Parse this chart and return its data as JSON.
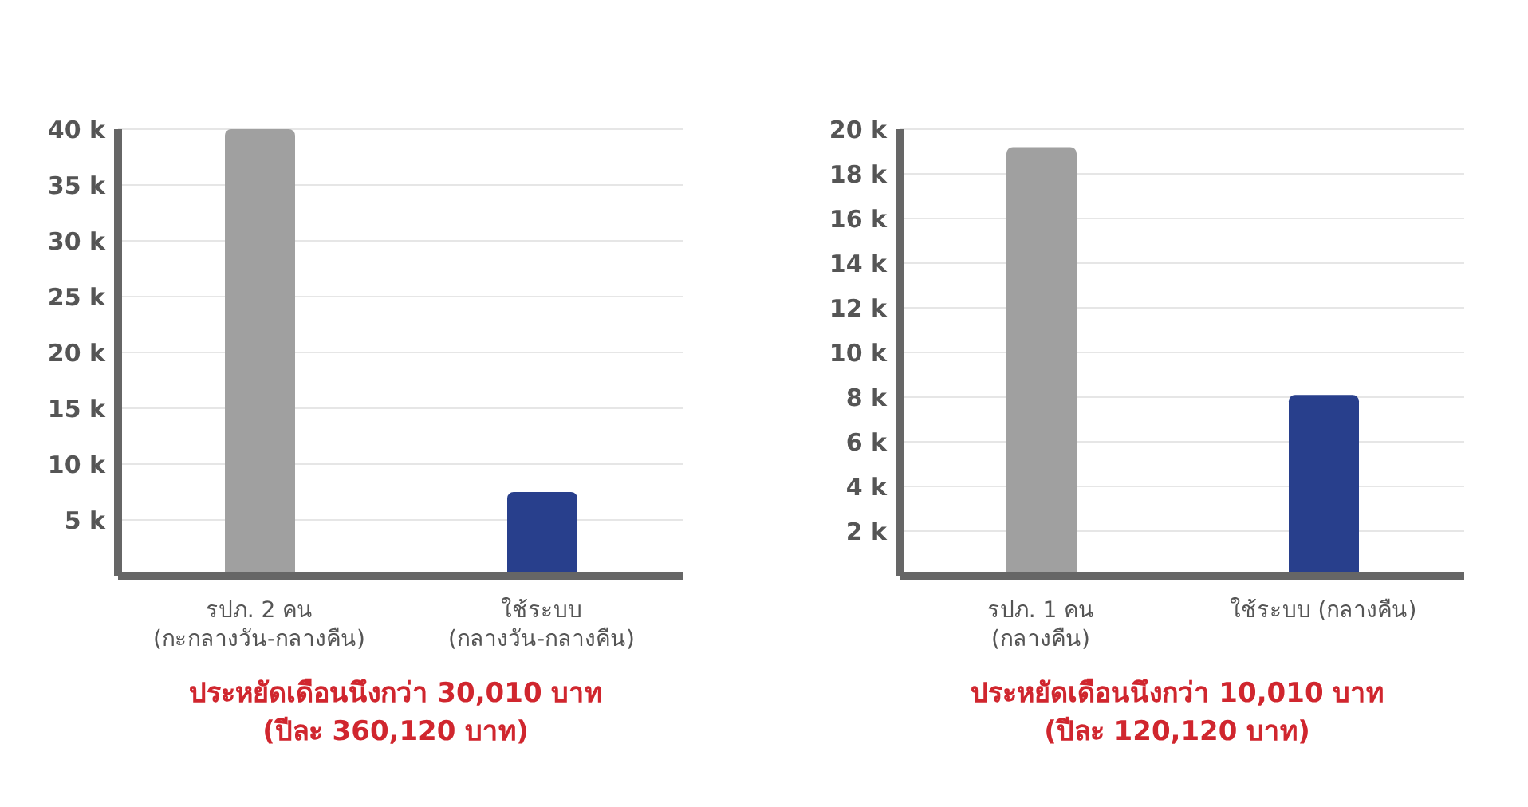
{
  "chart_data": [
    {
      "type": "bar",
      "categories": [
        "รปภ. 2 คน (กะกลางวัน-กลางคืน)",
        "ใช้ระบบ (กลางวัน-กลางคืน)"
      ],
      "values": [
        40000,
        7500
      ],
      "colors": [
        "#a0a0a0",
        "#283f8c"
      ],
      "ylim": [
        0,
        40000
      ],
      "yticks": [
        {
          "value": 5000,
          "label": "5 k"
        },
        {
          "value": 10000,
          "label": "10 k"
        },
        {
          "value": 15000,
          "label": "15 k"
        },
        {
          "value": 20000,
          "label": "20 k"
        },
        {
          "value": 25000,
          "label": "25 k"
        },
        {
          "value": 30000,
          "label": "30 k"
        },
        {
          "value": 35000,
          "label": "35 k"
        },
        {
          "value": 40000,
          "label": "40 k"
        }
      ],
      "grid": "y",
      "annotations": [
        "ประหยัดเดือนนึงกว่า 30,010 บาท",
        "(ปีละ 360,120 บาท)"
      ]
    },
    {
      "type": "bar",
      "categories": [
        "รปภ. 1 คน (กลางคืน)",
        "ใช้ระบบ (กลางคืน)"
      ],
      "values": [
        19200,
        8100
      ],
      "colors": [
        "#a0a0a0",
        "#283f8c"
      ],
      "ylim": [
        0,
        20000
      ],
      "yticks": [
        {
          "value": 2000,
          "label": "2 k"
        },
        {
          "value": 4000,
          "label": "4 k"
        },
        {
          "value": 6000,
          "label": "6 k"
        },
        {
          "value": 8000,
          "label": "8 k"
        },
        {
          "value": 10000,
          "label": "10 k"
        },
        {
          "value": 12000,
          "label": "12 k"
        },
        {
          "value": 14000,
          "label": "14 k"
        },
        {
          "value": 16000,
          "label": "16 k"
        },
        {
          "value": 18000,
          "label": "18 k"
        },
        {
          "value": 20000,
          "label": "20 k"
        }
      ],
      "grid": "y",
      "annotations": [
        "ประหยัดเดือนนึงกว่า 10,010 บาท",
        "(ปีละ 120,120 บาท)"
      ]
    }
  ]
}
